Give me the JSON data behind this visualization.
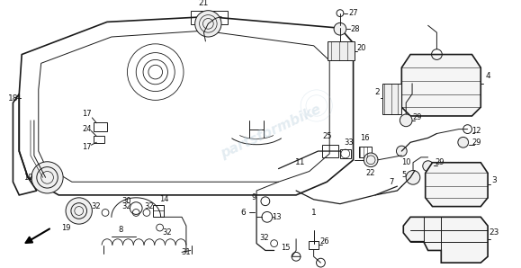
{
  "bg_color": "#ffffff",
  "figsize": [
    5.79,
    2.98
  ],
  "dpi": 100,
  "image_b64": ""
}
